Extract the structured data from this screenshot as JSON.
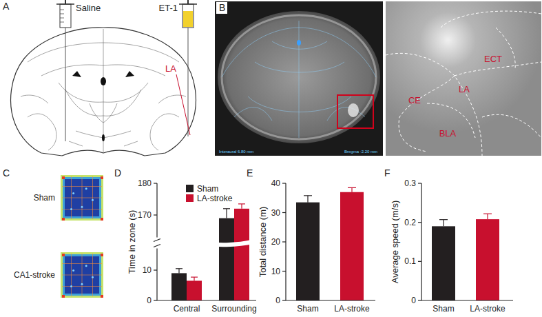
{
  "panel_labels": [
    "A",
    "B",
    "C",
    "D",
    "E",
    "F"
  ],
  "diagram": {
    "left_injection": "Saline",
    "right_injection": "ET-1",
    "target": "LA"
  },
  "mri": {
    "captions": [
      "Interaural 6.80 mm",
      "Bregma -2.20 mm"
    ],
    "regions": [
      "ECT",
      "LA",
      "CE",
      "BLA"
    ]
  },
  "heatmaps": {
    "rows": [
      "Sham",
      "CA1-stroke"
    ]
  },
  "chart_data": [
    {
      "type": "bar",
      "ylabel": "Time in zone (s)",
      "categories": [
        "Central",
        "Surrounding"
      ],
      "series": [
        {
          "name": "Sham",
          "color": "#231f20",
          "values": [
            9,
            169
          ],
          "errors": [
            1.5,
            3
          ]
        },
        {
          "name": "LA-stroke",
          "color": "#c8102e",
          "values": [
            6.5,
            172
          ],
          "errors": [
            1.2,
            1.5
          ]
        }
      ],
      "ylim": [
        0,
        180
      ],
      "yticks": [
        0,
        10,
        170,
        180
      ],
      "axis_break": [
        15,
        165
      ],
      "legend": "top"
    },
    {
      "type": "bar",
      "ylabel": "Total distance (m)",
      "categories": [
        "Sham",
        "LA-stroke"
      ],
      "values": [
        33.5,
        37
      ],
      "errors": [
        2.3,
        1.5
      ],
      "colors": [
        "#231f20",
        "#c8102e"
      ],
      "ylim": [
        0,
        40
      ],
      "yticks": [
        0,
        10,
        20,
        30,
        40
      ]
    },
    {
      "type": "bar",
      "ylabel": "Average speed (m/s)",
      "categories": [
        "Sham",
        "LA-stroke"
      ],
      "values": [
        0.19,
        0.208
      ],
      "errors": [
        0.017,
        0.014
      ],
      "colors": [
        "#231f20",
        "#c8102e"
      ],
      "ylim": [
        0,
        0.3
      ],
      "yticks": [
        0,
        0.1,
        0.2,
        0.3
      ]
    }
  ]
}
